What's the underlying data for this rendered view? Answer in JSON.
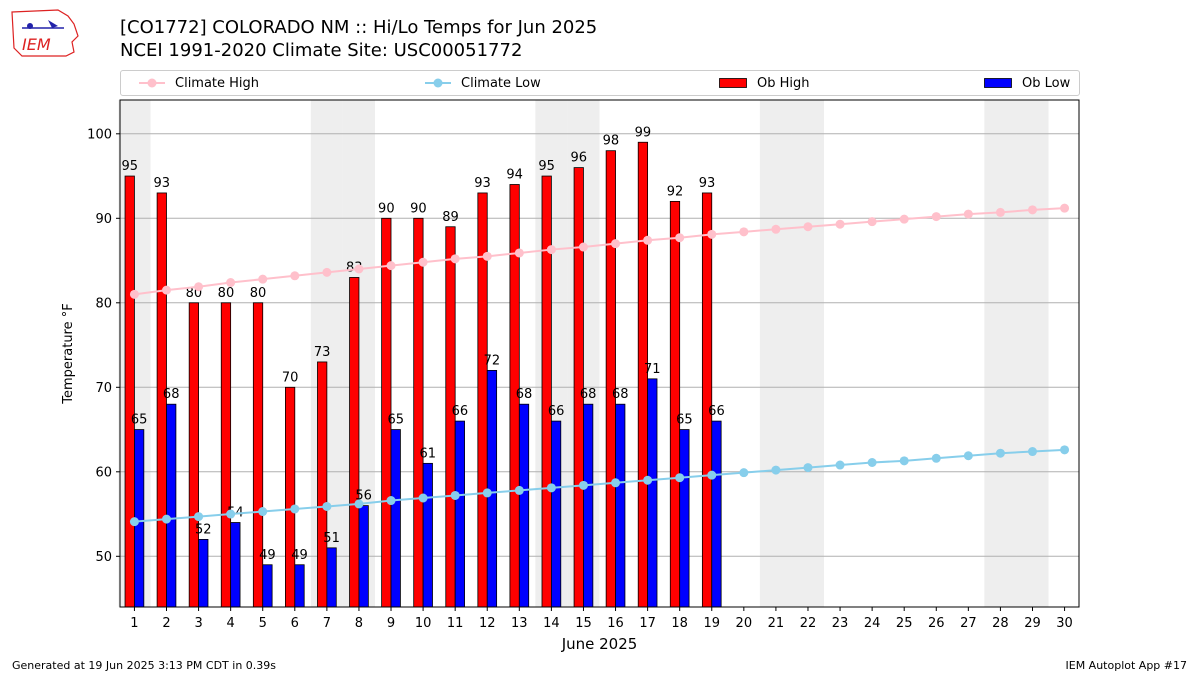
{
  "logo": {
    "text": "IEM"
  },
  "header": {
    "title": "[CO1772] COLORADO NM :: Hi/Lo Temps for Jun 2025",
    "subtitle": "NCEI 1991-2020 Climate Site: USC00051772"
  },
  "footer": {
    "generated": "Generated at 19 Jun 2025 3:13 PM CDT in 0.39s",
    "app": "IEM Autoplot App #17"
  },
  "colors": {
    "climate_high": "#ffc0cb",
    "climate_low": "#87ceeb",
    "ob_high": "#ff0000",
    "ob_low": "#0000ff",
    "weekend_shade": "#eeeeee"
  },
  "chart_data": {
    "type": "bar",
    "xlabel": "June 2025",
    "ylabel": "Temperature °F",
    "ylim": [
      44,
      104
    ],
    "yticks": [
      50,
      60,
      70,
      80,
      90,
      100
    ],
    "grid": "horizontal",
    "legend_position": "top",
    "x": [
      1,
      2,
      3,
      4,
      5,
      6,
      7,
      8,
      9,
      10,
      11,
      12,
      13,
      14,
      15,
      16,
      17,
      18,
      19,
      20,
      21,
      22,
      23,
      24,
      25,
      26,
      27,
      28,
      29,
      30
    ],
    "shaded_days": [
      1,
      7,
      8,
      14,
      15,
      21,
      22,
      28,
      29
    ],
    "series": [
      {
        "name": "Climate High",
        "kind": "line",
        "values": [
          81.0,
          81.5,
          81.9,
          82.4,
          82.8,
          83.2,
          83.6,
          84.0,
          84.4,
          84.8,
          85.2,
          85.5,
          85.9,
          86.3,
          86.6,
          87.0,
          87.4,
          87.7,
          88.1,
          88.4,
          88.7,
          89.0,
          89.3,
          89.6,
          89.9,
          90.2,
          90.5,
          90.7,
          91.0,
          91.2
        ]
      },
      {
        "name": "Climate Low",
        "kind": "line",
        "values": [
          54.1,
          54.4,
          54.7,
          55.0,
          55.3,
          55.6,
          55.9,
          56.2,
          56.6,
          56.9,
          57.2,
          57.5,
          57.8,
          58.1,
          58.4,
          58.7,
          59.0,
          59.3,
          59.6,
          59.9,
          60.2,
          60.5,
          60.8,
          61.1,
          61.3,
          61.6,
          61.9,
          62.2,
          62.4,
          62.6
        ]
      },
      {
        "name": "Ob High",
        "kind": "bar",
        "values": [
          95,
          93,
          80,
          80,
          80,
          70,
          73,
          83,
          90,
          90,
          89,
          93,
          94,
          95,
          96,
          98,
          99,
          92,
          93,
          null,
          null,
          null,
          null,
          null,
          null,
          null,
          null,
          null,
          null,
          null
        ]
      },
      {
        "name": "Ob Low",
        "kind": "bar",
        "values": [
          65,
          68,
          52,
          54,
          49,
          49,
          51,
          56,
          65,
          61,
          66,
          72,
          68,
          66,
          68,
          68,
          71,
          65,
          66,
          null,
          null,
          null,
          null,
          null,
          null,
          null,
          null,
          null,
          null,
          null
        ]
      }
    ]
  }
}
